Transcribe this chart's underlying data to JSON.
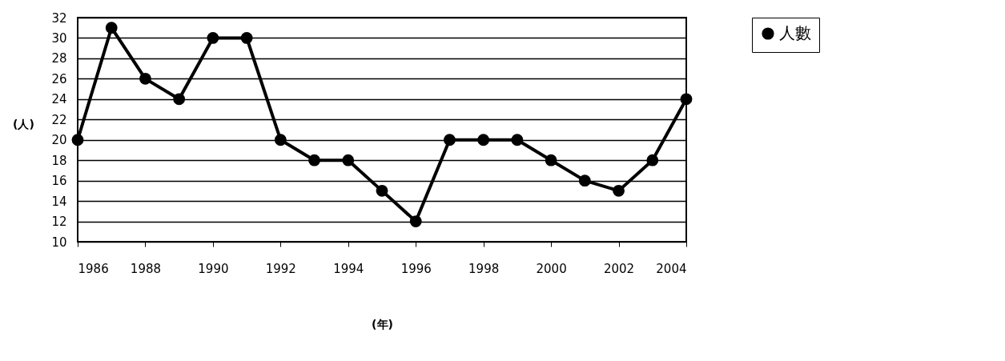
{
  "chart_data": {
    "type": "line",
    "xlabel": "(年)",
    "ylabel": "(人)",
    "x": [
      1986,
      1987,
      1988,
      1989,
      1990,
      1991,
      1992,
      1993,
      1994,
      1995,
      1996,
      1997,
      1998,
      1999,
      2000,
      2001,
      2002,
      2003,
      2004
    ],
    "series": [
      {
        "name": "人數",
        "color": "#000000",
        "values": [
          20,
          31,
          26,
          24,
          30,
          30,
          20,
          18,
          18,
          15,
          12,
          20,
          20,
          20,
          18,
          16,
          15,
          18,
          24
        ]
      }
    ],
    "xlim": [
      1986,
      2004
    ],
    "xticks": [
      1986,
      1988,
      1990,
      1992,
      1994,
      1996,
      1998,
      2000,
      2002,
      2004
    ],
    "ylim": [
      10,
      32
    ],
    "yticks": [
      10,
      12,
      14,
      16,
      18,
      20,
      22,
      24,
      26,
      28,
      30,
      32
    ],
    "grid": "y",
    "legend": "right",
    "marker": "circle",
    "line_style": "solid"
  }
}
